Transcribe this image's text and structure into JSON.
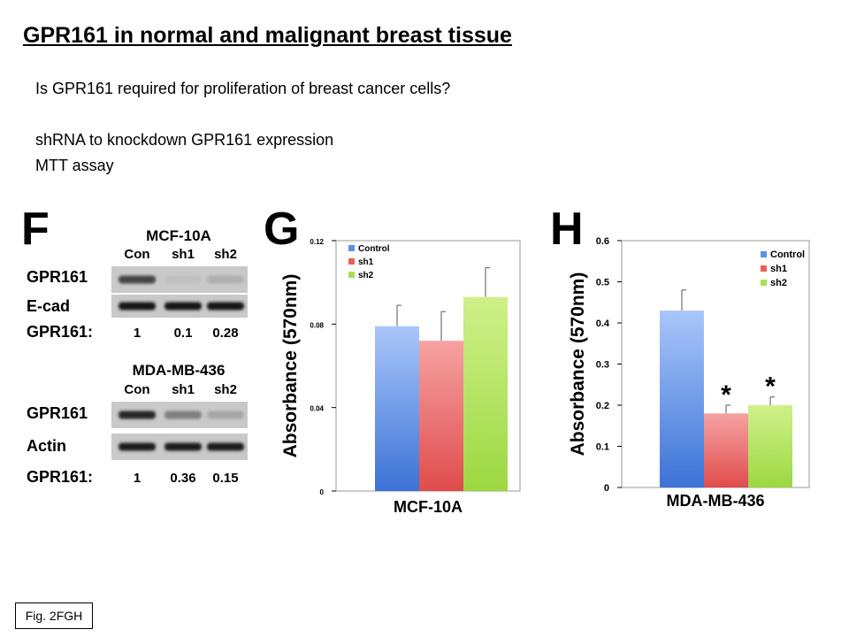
{
  "slide": {
    "title": "GPR161 in normal and malignant breast tissue",
    "question": "Is GPR161 required for proliferation of breast cancer cells?",
    "method1": "shRNA to knockdown GPR161 expression",
    "method2": "MTT assay",
    "fig_label": "Fig. 2FGH"
  },
  "panel_f": {
    "letter": "F",
    "blots": [
      {
        "cell_line": "MCF-10A",
        "lanes": [
          "Con",
          "sh1",
          "sh2"
        ],
        "band_rows": [
          {
            "label": "GPR161",
            "intensity": [
              0.75,
              0.12,
              0.2
            ]
          },
          {
            "label": "E-cad",
            "intensity": [
              1,
              1,
              1
            ]
          }
        ],
        "quant_label": "GPR161:",
        "quant_values": [
          "1",
          "0.1",
          "0.28"
        ]
      },
      {
        "cell_line": "MDA-MB-436",
        "lanes": [
          "Con",
          "sh1",
          "sh2"
        ],
        "band_rows": [
          {
            "label": "GPR161",
            "intensity": [
              0.9,
              0.45,
              0.25
            ]
          },
          {
            "label": "Actin",
            "intensity": [
              0.95,
              0.95,
              0.95
            ]
          }
        ],
        "quant_label": "GPR161:",
        "quant_values": [
          "1",
          "0.36",
          "0.15"
        ]
      }
    ]
  },
  "chart_data": [
    {
      "panel": "G",
      "type": "bar",
      "categories": [
        "Control",
        "sh1",
        "sh2"
      ],
      "values": [
        0.079,
        0.072,
        0.093
      ],
      "errors": [
        0.01,
        0.014,
        0.014
      ],
      "colors": [
        "#5b8fe6",
        "#e96060",
        "#a8df52"
      ],
      "xlabel": "MCF-10A",
      "ylabel": "Absorbance (570nm)",
      "ylim": [
        0,
        0.12
      ],
      "yticks": [
        "0",
        "0.04",
        "0.08",
        "0.12"
      ],
      "ytick_values": [
        0,
        0.04,
        0.08,
        0.12
      ],
      "legend": [
        "Control",
        "sh1",
        "sh2"
      ],
      "legend_position": "top-left",
      "significance": [
        "",
        "",
        ""
      ]
    },
    {
      "panel": "H",
      "type": "bar",
      "categories": [
        "Control",
        "sh1",
        "sh2"
      ],
      "values": [
        0.43,
        0.18,
        0.2
      ],
      "errors": [
        0.05,
        0.02,
        0.02
      ],
      "colors": [
        "#5b8fe6",
        "#e96060",
        "#a8df52"
      ],
      "xlabel": "MDA-MB-436",
      "ylabel": "Absorbance (570nm)",
      "ylim": [
        0,
        0.6
      ],
      "yticks": [
        "0",
        "0.1",
        "0.2",
        "0.3",
        "0.4",
        "0.5",
        "0.6"
      ],
      "ytick_values": [
        0,
        0.1,
        0.2,
        0.3,
        0.4,
        0.5,
        0.6
      ],
      "legend": [
        "Control",
        "sh1",
        "sh2"
      ],
      "legend_position": "top-right",
      "significance": [
        "",
        "*",
        "*"
      ]
    }
  ]
}
